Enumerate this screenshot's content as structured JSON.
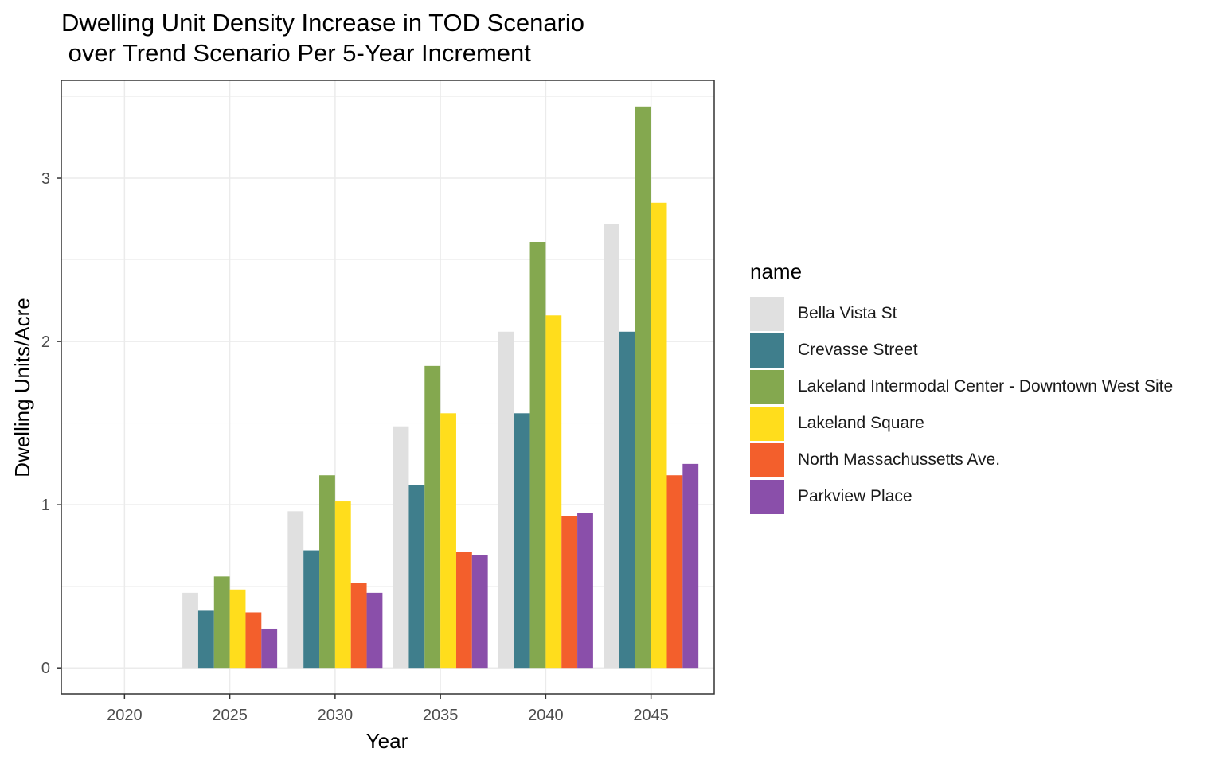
{
  "chart_data": {
    "type": "bar",
    "title": [
      "Dwelling Unit Density Increase in TOD Scenario",
      " over Trend Scenario Per 5-Year Increment"
    ],
    "xlabel": "Year",
    "ylabel": "Dwelling Units/Acre",
    "categories": [
      "2020",
      "2025",
      "2030",
      "2035",
      "2040",
      "2045"
    ],
    "ylim": [
      -0.16,
      3.6
    ],
    "yticks": [
      0,
      1,
      2,
      3
    ],
    "grid": true,
    "legend_title": "name",
    "legend_position": "right",
    "series": [
      {
        "name": "Bella Vista St",
        "color": "#E0E0E0",
        "values": [
          0,
          0.46,
          0.96,
          1.48,
          2.06,
          2.72
        ]
      },
      {
        "name": "Crevasse Street",
        "color": "#3F7E8C",
        "values": [
          0,
          0.35,
          0.72,
          1.12,
          1.56,
          2.06
        ]
      },
      {
        "name": "Lakeland Intermodal Center - Downtown West Site",
        "color": "#84A84F",
        "values": [
          0,
          0.56,
          1.18,
          1.85,
          2.61,
          3.44
        ]
      },
      {
        "name": "Lakeland Square",
        "color": "#FFDD1C",
        "values": [
          0,
          0.48,
          1.02,
          1.56,
          2.16,
          2.85
        ]
      },
      {
        "name": "North Massachussetts Ave.",
        "color": "#F35F2C",
        "values": [
          0,
          0.34,
          0.52,
          0.71,
          0.93,
          1.18
        ]
      },
      {
        "name": "Parkview Place",
        "color": "#8A4FAA",
        "values": [
          0,
          0.24,
          0.46,
          0.69,
          0.95,
          1.25
        ]
      }
    ]
  }
}
